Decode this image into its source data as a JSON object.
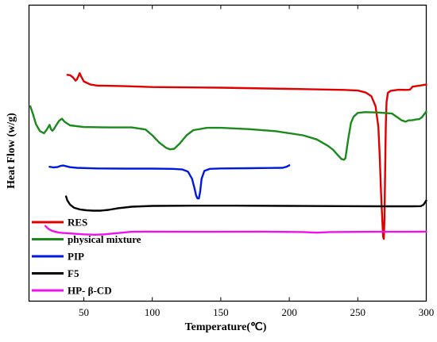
{
  "chart_data": {
    "type": "line",
    "title": "",
    "xlabel": "Temperature(℃)",
    "ylabel": "Heat Flow (w/g)",
    "xlim": [
      10,
      300
    ],
    "xticks": [
      50,
      100,
      150,
      200,
      250,
      300
    ],
    "y_ticks_shown": false,
    "grid": false,
    "legend_position": "bottom-left",
    "series": [
      {
        "name": "RES",
        "color": "#e00000",
        "points": [
          [
            38,
            79.2
          ],
          [
            40,
            79.0
          ],
          [
            42,
            78.0
          ],
          [
            44,
            76.4
          ],
          [
            45,
            77.0
          ],
          [
            46,
            78.5
          ],
          [
            47,
            80.0
          ],
          [
            48,
            78.5
          ],
          [
            50,
            76.0
          ],
          [
            55,
            74.5
          ],
          [
            60,
            74.0
          ],
          [
            80,
            73.7
          ],
          [
            100,
            73.3
          ],
          [
            150,
            73.0
          ],
          [
            200,
            72.4
          ],
          [
            240,
            71.9
          ],
          [
            250,
            71.6
          ],
          [
            256,
            70.6
          ],
          [
            260,
            68.8
          ],
          [
            263,
            64.0
          ],
          [
            265,
            54.0
          ],
          [
            266,
            40.0
          ],
          [
            267,
            22.0
          ],
          [
            268,
            8.0
          ],
          [
            268.5,
            1.0
          ],
          [
            269,
            0.0
          ],
          [
            269.5,
            10.0
          ],
          [
            270,
            35.0
          ],
          [
            270.5,
            55.0
          ],
          [
            271,
            66.0
          ],
          [
            272,
            70.5
          ],
          [
            274,
            71.5
          ],
          [
            280,
            72.0
          ],
          [
            285,
            71.9
          ],
          [
            288,
            72.0
          ],
          [
            290,
            73.5
          ],
          [
            295,
            74.0
          ],
          [
            300,
            74.5
          ]
        ]
      },
      {
        "name": "physical mixture",
        "color": "#1a8a1a",
        "points": [
          [
            11,
            64.0
          ],
          [
            13,
            60.0
          ],
          [
            15,
            55.5
          ],
          [
            18,
            52.0
          ],
          [
            21,
            51.0
          ],
          [
            23,
            52.8
          ],
          [
            25,
            55.0
          ],
          [
            26,
            53.0
          ],
          [
            27,
            52.2
          ],
          [
            28,
            52.8
          ],
          [
            30,
            55.0
          ],
          [
            32,
            57.0
          ],
          [
            34,
            58.0
          ],
          [
            36,
            56.5
          ],
          [
            40,
            54.8
          ],
          [
            50,
            54.0
          ],
          [
            70,
            53.8
          ],
          [
            85,
            53.8
          ],
          [
            95,
            52.8
          ],
          [
            100,
            50.0
          ],
          [
            105,
            46.5
          ],
          [
            110,
            44.0
          ],
          [
            113,
            43.2
          ],
          [
            116,
            43.5
          ],
          [
            120,
            46.0
          ],
          [
            125,
            50.0
          ],
          [
            130,
            52.5
          ],
          [
            140,
            53.6
          ],
          [
            150,
            53.6
          ],
          [
            170,
            53.0
          ],
          [
            190,
            52.0
          ],
          [
            210,
            50.0
          ],
          [
            220,
            48.0
          ],
          [
            228,
            45.0
          ],
          [
            232,
            43.0
          ],
          [
            234,
            41.5
          ],
          [
            236,
            40.0
          ],
          [
            238,
            38.6
          ],
          [
            240,
            38.2
          ],
          [
            241,
            39.0
          ],
          [
            243,
            48.0
          ],
          [
            245,
            56.0
          ],
          [
            247,
            59.0
          ],
          [
            250,
            60.8
          ],
          [
            255,
            61.2
          ],
          [
            265,
            61.0
          ],
          [
            275,
            60.5
          ],
          [
            280,
            58.2
          ],
          [
            282,
            57.2
          ],
          [
            285,
            56.6
          ],
          [
            287,
            57.2
          ],
          [
            290,
            57.3
          ],
          [
            292,
            57.6
          ],
          [
            295,
            57.8
          ],
          [
            297,
            58.8
          ],
          [
            300,
            61.5
          ]
        ]
      },
      {
        "name": "PIP",
        "color": "#0019e0",
        "points": [
          [
            25,
            34.8
          ],
          [
            28,
            34.5
          ],
          [
            31,
            34.7
          ],
          [
            33,
            35.2
          ],
          [
            35,
            35.4
          ],
          [
            37,
            35.1
          ],
          [
            40,
            34.6
          ],
          [
            45,
            34.3
          ],
          [
            60,
            34.0
          ],
          [
            80,
            33.9
          ],
          [
            100,
            33.9
          ],
          [
            115,
            33.8
          ],
          [
            122,
            33.5
          ],
          [
            126,
            32.5
          ],
          [
            129,
            29.0
          ],
          [
            131,
            24.0
          ],
          [
            132,
            21.0
          ],
          [
            133,
            19.5
          ],
          [
            134,
            19.5
          ],
          [
            135,
            23.0
          ],
          [
            136,
            29.0
          ],
          [
            138,
            32.8
          ],
          [
            142,
            33.8
          ],
          [
            150,
            34.0
          ],
          [
            170,
            34.1
          ],
          [
            185,
            34.2
          ],
          [
            195,
            34.3
          ],
          [
            198,
            34.8
          ],
          [
            200,
            35.5
          ]
        ]
      },
      {
        "name": "F5",
        "color": "#000000",
        "points": [
          [
            37,
            20.5
          ],
          [
            38,
            18.5
          ],
          [
            40,
            16.5
          ],
          [
            43,
            15.0
          ],
          [
            47,
            14.2
          ],
          [
            52,
            13.8
          ],
          [
            57,
            13.6
          ],
          [
            62,
            13.6
          ],
          [
            68,
            14.0
          ],
          [
            75,
            14.8
          ],
          [
            85,
            15.5
          ],
          [
            100,
            15.9
          ],
          [
            130,
            16.0
          ],
          [
            160,
            16.0
          ],
          [
            200,
            15.9
          ],
          [
            240,
            15.8
          ],
          [
            270,
            15.7
          ],
          [
            290,
            15.7
          ],
          [
            296,
            15.8
          ],
          [
            298,
            16.5
          ],
          [
            300,
            18.5
          ]
        ]
      },
      {
        "name": "HP- β-CD",
        "color": "#ee11ee",
        "points": [
          [
            22,
            6.2
          ],
          [
            24,
            4.9
          ],
          [
            27,
            3.8
          ],
          [
            32,
            3.0
          ],
          [
            40,
            2.6
          ],
          [
            50,
            2.2
          ],
          [
            58,
            2.0
          ],
          [
            65,
            2.2
          ],
          [
            75,
            2.8
          ],
          [
            85,
            3.4
          ],
          [
            95,
            3.5
          ],
          [
            120,
            3.4
          ],
          [
            150,
            3.4
          ],
          [
            180,
            3.5
          ],
          [
            210,
            3.3
          ],
          [
            220,
            3.0
          ],
          [
            230,
            3.3
          ],
          [
            260,
            3.4
          ],
          [
            290,
            3.4
          ],
          [
            300,
            3.5
          ]
        ]
      }
    ]
  }
}
